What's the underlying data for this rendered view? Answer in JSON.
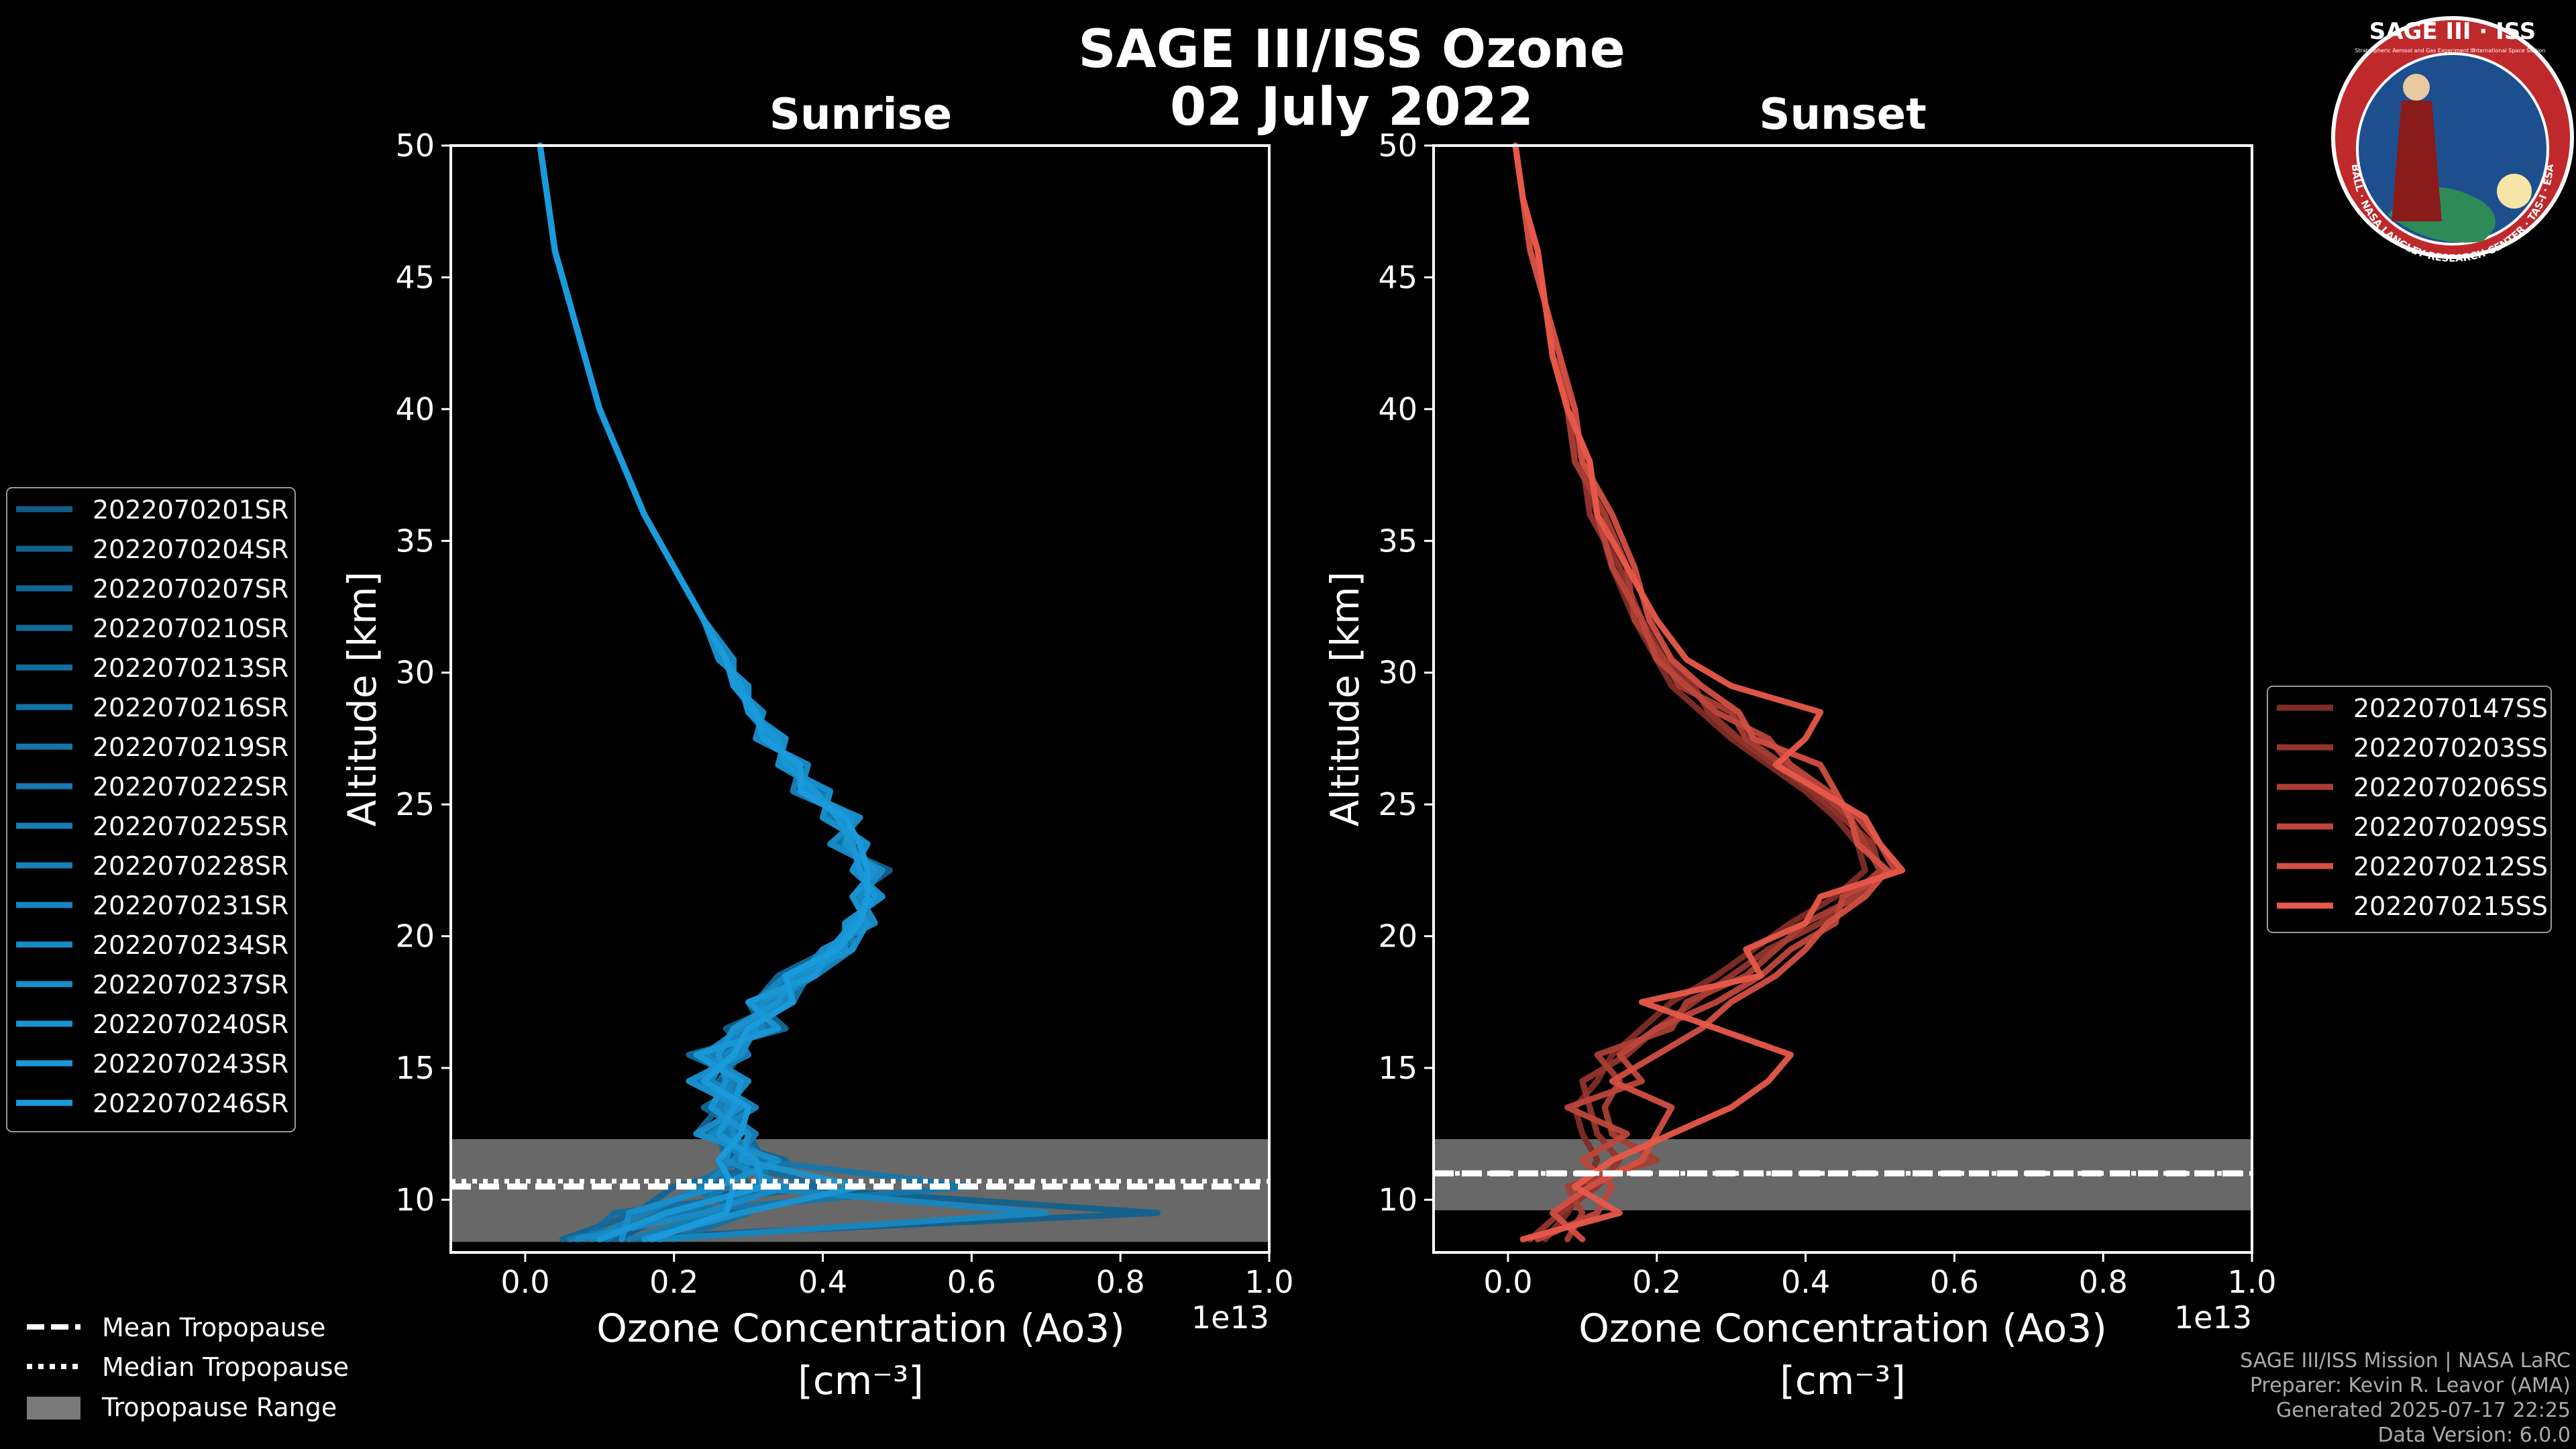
{
  "title": "SAGE III/ISS Ozone",
  "date": "02 July 2022",
  "logo": {
    "text": "SAGE III · ISS",
    "sub1": "Stratospheric Aerosol and Gas Experiment III",
    "sub2": "International Space Station",
    "ring": "BALL · NASA LANGLEY RESEARCH CENTER · TAS-I · ESA"
  },
  "colors": {
    "sunrise": "#1a9bdc",
    "sunset": "#e8584a",
    "background": "#000000",
    "tropopause_range": "#7a7a7a"
  },
  "chart_data": [
    {
      "type": "line",
      "id": "sunrise",
      "title": "Sunrise",
      "xlabel": "Ozone Concentration (Ao3)",
      "xunit": "[cm⁻³]",
      "ylabel": "Altitude [km]",
      "xlim": [
        -0.1,
        1.0
      ],
      "ylim": [
        8,
        50
      ],
      "x_scale_label": "1e13",
      "xticks": [
        0.0,
        0.2,
        0.4,
        0.6,
        0.8,
        1.0
      ],
      "xtick_labels": [
        "0.0",
        "0.2",
        "0.4",
        "0.6",
        "0.8",
        "1.0"
      ],
      "yticks": [
        10,
        15,
        20,
        25,
        30,
        35,
        40,
        45,
        50
      ],
      "tropopause": {
        "mean": 10.5,
        "median": 10.7,
        "range": [
          8.4,
          12.3
        ]
      },
      "profile_altitudes": [
        8.5,
        9.5,
        10.5,
        11.5,
        12.5,
        13.5,
        14.5,
        15.5,
        16.5,
        17.5,
        18.5,
        19.5,
        20.5,
        21.5,
        22.5,
        23.5,
        24.5,
        25.5,
        26.5,
        27.5,
        28.5,
        29.5,
        30.5,
        32,
        34,
        36,
        38,
        40,
        42,
        44,
        46,
        48,
        50
      ],
      "series": [
        {
          "name": "2022070201SR",
          "values": [
            0.12,
            0.2,
            0.3,
            0.28,
            0.27,
            0.28,
            0.25,
            0.27,
            0.3,
            0.33,
            0.36,
            0.42,
            0.45,
            0.46,
            0.46,
            0.44,
            0.42,
            0.39,
            0.36,
            0.33,
            0.31,
            0.29,
            0.27,
            0.24,
            0.2,
            0.16,
            0.13,
            0.1,
            0.08,
            0.06,
            0.04,
            0.03,
            0.02
          ]
        },
        {
          "name": "2022070204SR",
          "values": [
            0.1,
            0.85,
            0.33,
            0.3,
            0.25,
            0.3,
            0.22,
            0.3,
            0.27,
            0.35,
            0.38,
            0.4,
            0.47,
            0.44,
            0.49,
            0.41,
            0.45,
            0.37,
            0.38,
            0.31,
            0.32,
            0.28,
            0.28,
            0.24,
            0.2,
            0.16,
            0.13,
            0.1,
            0.08,
            0.06,
            0.04,
            0.03,
            0.02
          ]
        },
        {
          "name": "2022070207SR",
          "values": [
            0.05,
            0.15,
            0.2,
            0.35,
            0.23,
            0.26,
            0.28,
            0.24,
            0.32,
            0.3,
            0.39,
            0.44,
            0.43,
            0.48,
            0.44,
            0.46,
            0.4,
            0.41,
            0.34,
            0.35,
            0.3,
            0.3,
            0.26,
            0.24,
            0.2,
            0.16,
            0.13,
            0.1,
            0.08,
            0.06,
            0.04,
            0.03,
            0.02
          ]
        },
        {
          "name": "2022070210SR",
          "values": [
            0.15,
            0.28,
            0.25,
            0.32,
            0.3,
            0.24,
            0.3,
            0.22,
            0.35,
            0.31,
            0.34,
            0.41,
            0.46,
            0.45,
            0.47,
            0.42,
            0.44,
            0.36,
            0.37,
            0.32,
            0.31,
            0.28,
            0.27,
            0.24,
            0.2,
            0.16,
            0.13,
            0.1,
            0.08,
            0.06,
            0.04,
            0.03,
            0.02
          ]
        },
        {
          "name": "2022070213SR",
          "values": [
            0.08,
            0.12,
            0.4,
            0.27,
            0.26,
            0.3,
            0.26,
            0.29,
            0.28,
            0.34,
            0.37,
            0.43,
            0.44,
            0.47,
            0.45,
            0.45,
            0.41,
            0.4,
            0.35,
            0.34,
            0.3,
            0.29,
            0.27,
            0.24,
            0.2,
            0.16,
            0.13,
            0.1,
            0.08,
            0.06,
            0.04,
            0.03,
            0.02
          ]
        },
        {
          "name": "2022070216SR",
          "values": [
            0.2,
            0.3,
            0.22,
            0.29,
            0.28,
            0.27,
            0.24,
            0.26,
            0.31,
            0.32,
            0.35,
            0.42,
            0.45,
            0.46,
            0.46,
            0.43,
            0.43,
            0.38,
            0.36,
            0.33,
            0.3,
            0.29,
            0.27,
            0.24,
            0.2,
            0.16,
            0.13,
            0.1,
            0.08,
            0.06,
            0.04,
            0.03,
            0.02
          ]
        },
        {
          "name": "2022070219SR",
          "values": [
            0.11,
            0.18,
            0.6,
            0.31,
            0.24,
            0.29,
            0.27,
            0.28,
            0.29,
            0.36,
            0.38,
            0.4,
            0.47,
            0.45,
            0.48,
            0.42,
            0.45,
            0.37,
            0.37,
            0.32,
            0.31,
            0.28,
            0.27,
            0.24,
            0.2,
            0.16,
            0.13,
            0.1,
            0.08,
            0.06,
            0.04,
            0.03,
            0.02
          ]
        },
        {
          "name": "2022070222SR",
          "values": [
            0.06,
            0.22,
            0.27,
            0.26,
            0.29,
            0.25,
            0.29,
            0.23,
            0.33,
            0.31,
            0.36,
            0.43,
            0.43,
            0.48,
            0.44,
            0.46,
            0.41,
            0.4,
            0.34,
            0.35,
            0.3,
            0.3,
            0.26,
            0.24,
            0.2,
            0.16,
            0.13,
            0.1,
            0.08,
            0.06,
            0.04,
            0.03,
            0.02
          ]
        },
        {
          "name": "2022070225SR",
          "values": [
            0.14,
            0.26,
            0.31,
            0.33,
            0.27,
            0.28,
            0.23,
            0.3,
            0.28,
            0.34,
            0.37,
            0.41,
            0.46,
            0.44,
            0.47,
            0.43,
            0.44,
            0.36,
            0.37,
            0.32,
            0.31,
            0.28,
            0.28,
            0.24,
            0.2,
            0.16,
            0.13,
            0.1,
            0.08,
            0.06,
            0.04,
            0.03,
            0.02
          ]
        },
        {
          "name": "2022070228SR",
          "values": [
            0.09,
            0.16,
            0.24,
            0.28,
            0.31,
            0.26,
            0.28,
            0.25,
            0.3,
            0.33,
            0.39,
            0.44,
            0.44,
            0.47,
            0.45,
            0.44,
            0.42,
            0.39,
            0.35,
            0.34,
            0.3,
            0.29,
            0.27,
            0.24,
            0.2,
            0.16,
            0.13,
            0.1,
            0.08,
            0.06,
            0.04,
            0.03,
            0.02
          ]
        },
        {
          "name": "2022070231SR",
          "values": [
            0.18,
            0.7,
            0.29,
            0.3,
            0.25,
            0.31,
            0.25,
            0.27,
            0.32,
            0.31,
            0.35,
            0.42,
            0.45,
            0.46,
            0.46,
            0.45,
            0.43,
            0.38,
            0.36,
            0.33,
            0.31,
            0.29,
            0.27,
            0.24,
            0.2,
            0.16,
            0.13,
            0.1,
            0.08,
            0.06,
            0.04,
            0.03,
            0.02
          ]
        },
        {
          "name": "2022070234SR",
          "values": [
            0.07,
            0.24,
            0.35,
            0.27,
            0.28,
            0.27,
            0.3,
            0.24,
            0.29,
            0.35,
            0.37,
            0.4,
            0.47,
            0.45,
            0.48,
            0.41,
            0.45,
            0.37,
            0.38,
            0.31,
            0.32,
            0.28,
            0.28,
            0.24,
            0.2,
            0.16,
            0.13,
            0.1,
            0.08,
            0.06,
            0.04,
            0.03,
            0.02
          ]
        },
        {
          "name": "2022070237SR",
          "values": [
            0.13,
            0.14,
            0.26,
            0.34,
            0.23,
            0.29,
            0.22,
            0.29,
            0.31,
            0.32,
            0.38,
            0.43,
            0.43,
            0.48,
            0.44,
            0.46,
            0.4,
            0.41,
            0.34,
            0.35,
            0.3,
            0.3,
            0.26,
            0.24,
            0.2,
            0.16,
            0.13,
            0.1,
            0.08,
            0.06,
            0.04,
            0.03,
            0.02
          ]
        },
        {
          "name": "2022070240SR",
          "values": [
            0.16,
            0.29,
            0.45,
            0.29,
            0.3,
            0.25,
            0.27,
            0.26,
            0.28,
            0.34,
            0.36,
            0.44,
            0.46,
            0.44,
            0.47,
            0.43,
            0.44,
            0.38,
            0.36,
            0.33,
            0.31,
            0.29,
            0.27,
            0.24,
            0.2,
            0.16,
            0.13,
            0.1,
            0.08,
            0.06,
            0.04,
            0.03,
            0.02
          ]
        },
        {
          "name": "2022070243SR",
          "values": [
            0.1,
            0.19,
            0.32,
            0.31,
            0.26,
            0.28,
            0.29,
            0.23,
            0.34,
            0.3,
            0.39,
            0.41,
            0.44,
            0.47,
            0.45,
            0.44,
            0.42,
            0.39,
            0.35,
            0.34,
            0.3,
            0.29,
            0.27,
            0.24,
            0.2,
            0.16,
            0.13,
            0.1,
            0.08,
            0.06,
            0.04,
            0.03,
            0.02
          ]
        },
        {
          "name": "2022070246SR",
          "values": [
            0.17,
            0.27,
            0.28,
            0.26,
            0.29,
            0.3,
            0.24,
            0.28,
            0.3,
            0.36,
            0.35,
            0.42,
            0.45,
            0.46,
            0.46,
            0.45,
            0.43,
            0.37,
            0.37,
            0.32,
            0.31,
            0.28,
            0.27,
            0.24,
            0.2,
            0.16,
            0.13,
            0.1,
            0.08,
            0.06,
            0.04,
            0.03,
            0.02
          ]
        }
      ]
    },
    {
      "type": "line",
      "id": "sunset",
      "title": "Sunset",
      "xlabel": "Ozone Concentration (Ao3)",
      "xunit": "[cm⁻³]",
      "ylabel": "Altitude [km]",
      "xlim": [
        -0.1,
        1.0
      ],
      "ylim": [
        8,
        50
      ],
      "x_scale_label": "1e13",
      "xticks": [
        0.0,
        0.2,
        0.4,
        0.6,
        0.8,
        1.0
      ],
      "xtick_labels": [
        "0.0",
        "0.2",
        "0.4",
        "0.6",
        "0.8",
        "1.0"
      ],
      "yticks": [
        10,
        15,
        20,
        25,
        30,
        35,
        40,
        45,
        50
      ],
      "tropopause": {
        "mean": 11.0,
        "median": 11.0,
        "range": [
          9.6,
          12.3
        ]
      },
      "profile_altitudes": [
        8.5,
        9.5,
        10.5,
        11.5,
        12.5,
        13.5,
        14.5,
        15.5,
        16.5,
        17.5,
        18.5,
        19.5,
        20.5,
        21.5,
        22.5,
        23.5,
        24.5,
        25.5,
        26.5,
        27.5,
        28.5,
        29.5,
        30.5,
        32,
        34,
        36,
        38,
        40,
        42,
        44,
        46,
        48,
        50
      ],
      "series": [
        {
          "name": "2022070147SS",
          "values": [
            0.05,
            0.08,
            0.1,
            0.12,
            0.1,
            0.09,
            0.12,
            0.14,
            0.18,
            0.22,
            0.28,
            0.33,
            0.38,
            0.44,
            0.48,
            0.47,
            0.44,
            0.4,
            0.35,
            0.3,
            0.26,
            0.22,
            0.2,
            0.17,
            0.14,
            0.12,
            0.1,
            0.08,
            0.06,
            0.05,
            0.03,
            0.02,
            0.01
          ]
        },
        {
          "name": "2022070203SS",
          "values": [
            0.03,
            0.07,
            0.12,
            0.15,
            0.12,
            0.11,
            0.1,
            0.16,
            0.2,
            0.25,
            0.3,
            0.35,
            0.42,
            0.46,
            0.5,
            0.49,
            0.45,
            0.41,
            0.36,
            0.31,
            0.27,
            0.25,
            0.21,
            0.18,
            0.15,
            0.11,
            0.1,
            0.09,
            0.06,
            0.05,
            0.04,
            0.02,
            0.01
          ]
        },
        {
          "name": "2022070206SS",
          "values": [
            0.08,
            0.1,
            0.08,
            0.2,
            0.14,
            0.13,
            0.15,
            0.12,
            0.22,
            0.24,
            0.32,
            0.36,
            0.4,
            0.47,
            0.5,
            0.48,
            0.46,
            0.42,
            0.37,
            0.32,
            0.3,
            0.23,
            0.21,
            0.17,
            0.16,
            0.13,
            0.09,
            0.08,
            0.07,
            0.05,
            0.03,
            0.02,
            0.01
          ]
        },
        {
          "name": "2022070209SS",
          "values": [
            0.04,
            0.12,
            0.14,
            0.1,
            0.16,
            0.08,
            0.18,
            0.15,
            0.2,
            0.28,
            0.34,
            0.38,
            0.44,
            0.45,
            0.52,
            0.5,
            0.47,
            0.43,
            0.38,
            0.35,
            0.28,
            0.24,
            0.2,
            0.18,
            0.14,
            0.12,
            0.11,
            0.08,
            0.06,
            0.05,
            0.04,
            0.02,
            0.01
          ]
        },
        {
          "name": "2022070212SS",
          "values": [
            0.1,
            0.06,
            0.11,
            0.18,
            0.2,
            0.22,
            0.14,
            0.2,
            0.26,
            0.3,
            0.36,
            0.4,
            0.43,
            0.48,
            0.51,
            0.47,
            0.46,
            0.44,
            0.42,
            0.33,
            0.31,
            0.26,
            0.22,
            0.19,
            0.17,
            0.14,
            0.1,
            0.09,
            0.07,
            0.05,
            0.03,
            0.02,
            0.01
          ]
        },
        {
          "name": "2022070215SS",
          "values": [
            0.02,
            0.15,
            0.09,
            0.14,
            0.22,
            0.3,
            0.35,
            0.38,
            0.28,
            0.18,
            0.34,
            0.32,
            0.4,
            0.42,
            0.53,
            0.5,
            0.48,
            0.42,
            0.36,
            0.4,
            0.42,
            0.3,
            0.24,
            0.2,
            0.16,
            0.12,
            0.11,
            0.08,
            0.06,
            0.05,
            0.04,
            0.02,
            0.01
          ]
        }
      ]
    }
  ],
  "legends": {
    "tropopause": [
      {
        "label": "Mean Tropopause",
        "style": "dashed"
      },
      {
        "label": "Median Tropopause",
        "style": "dotted"
      },
      {
        "label": "Tropopause Range",
        "style": "patch"
      }
    ]
  },
  "credits": [
    "SAGE III/ISS Mission | NASA LaRC",
    "Preparer: Kevin R. Leavor (AMA)",
    "Generated 2025-07-17 22:25",
    "Data Version: 6.0.0"
  ]
}
